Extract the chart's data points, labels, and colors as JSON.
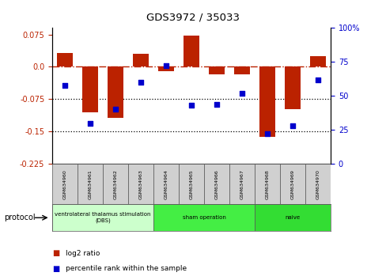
{
  "title": "GDS3972 / 35033",
  "samples": [
    "GSM634960",
    "GSM634961",
    "GSM634962",
    "GSM634963",
    "GSM634964",
    "GSM634965",
    "GSM634966",
    "GSM634967",
    "GSM634968",
    "GSM634969",
    "GSM634970"
  ],
  "log2_ratio": [
    0.032,
    -0.105,
    -0.118,
    0.03,
    -0.01,
    0.072,
    -0.018,
    -0.018,
    -0.163,
    -0.098,
    0.025
  ],
  "percentile_rank": [
    58,
    30,
    40,
    60,
    72,
    43,
    44,
    52,
    22,
    28,
    62
  ],
  "bar_color": "#bb2200",
  "dot_color": "#0000cc",
  "ylim_left": [
    -0.225,
    0.09
  ],
  "ylim_right": [
    0,
    100
  ],
  "yticks_left": [
    0.075,
    0.0,
    -0.075,
    -0.15,
    -0.225
  ],
  "yticks_right": [
    100,
    75,
    50,
    25,
    0
  ],
  "hline_y": 0.0,
  "hline_dotted1": -0.075,
  "hline_dotted2": -0.15,
  "groups": [
    {
      "label": "ventrolateral thalamus stimulation\n(DBS)",
      "start": 0,
      "end": 3,
      "color": "#ccffcc"
    },
    {
      "label": "sham operation",
      "start": 4,
      "end": 7,
      "color": "#44ee44"
    },
    {
      "label": "naive",
      "start": 8,
      "end": 10,
      "color": "#33dd33"
    }
  ],
  "protocol_label": "protocol",
  "legend_bar_label": "log2 ratio",
  "legend_dot_label": "percentile rank within the sample",
  "bg_color": "#ffffff"
}
